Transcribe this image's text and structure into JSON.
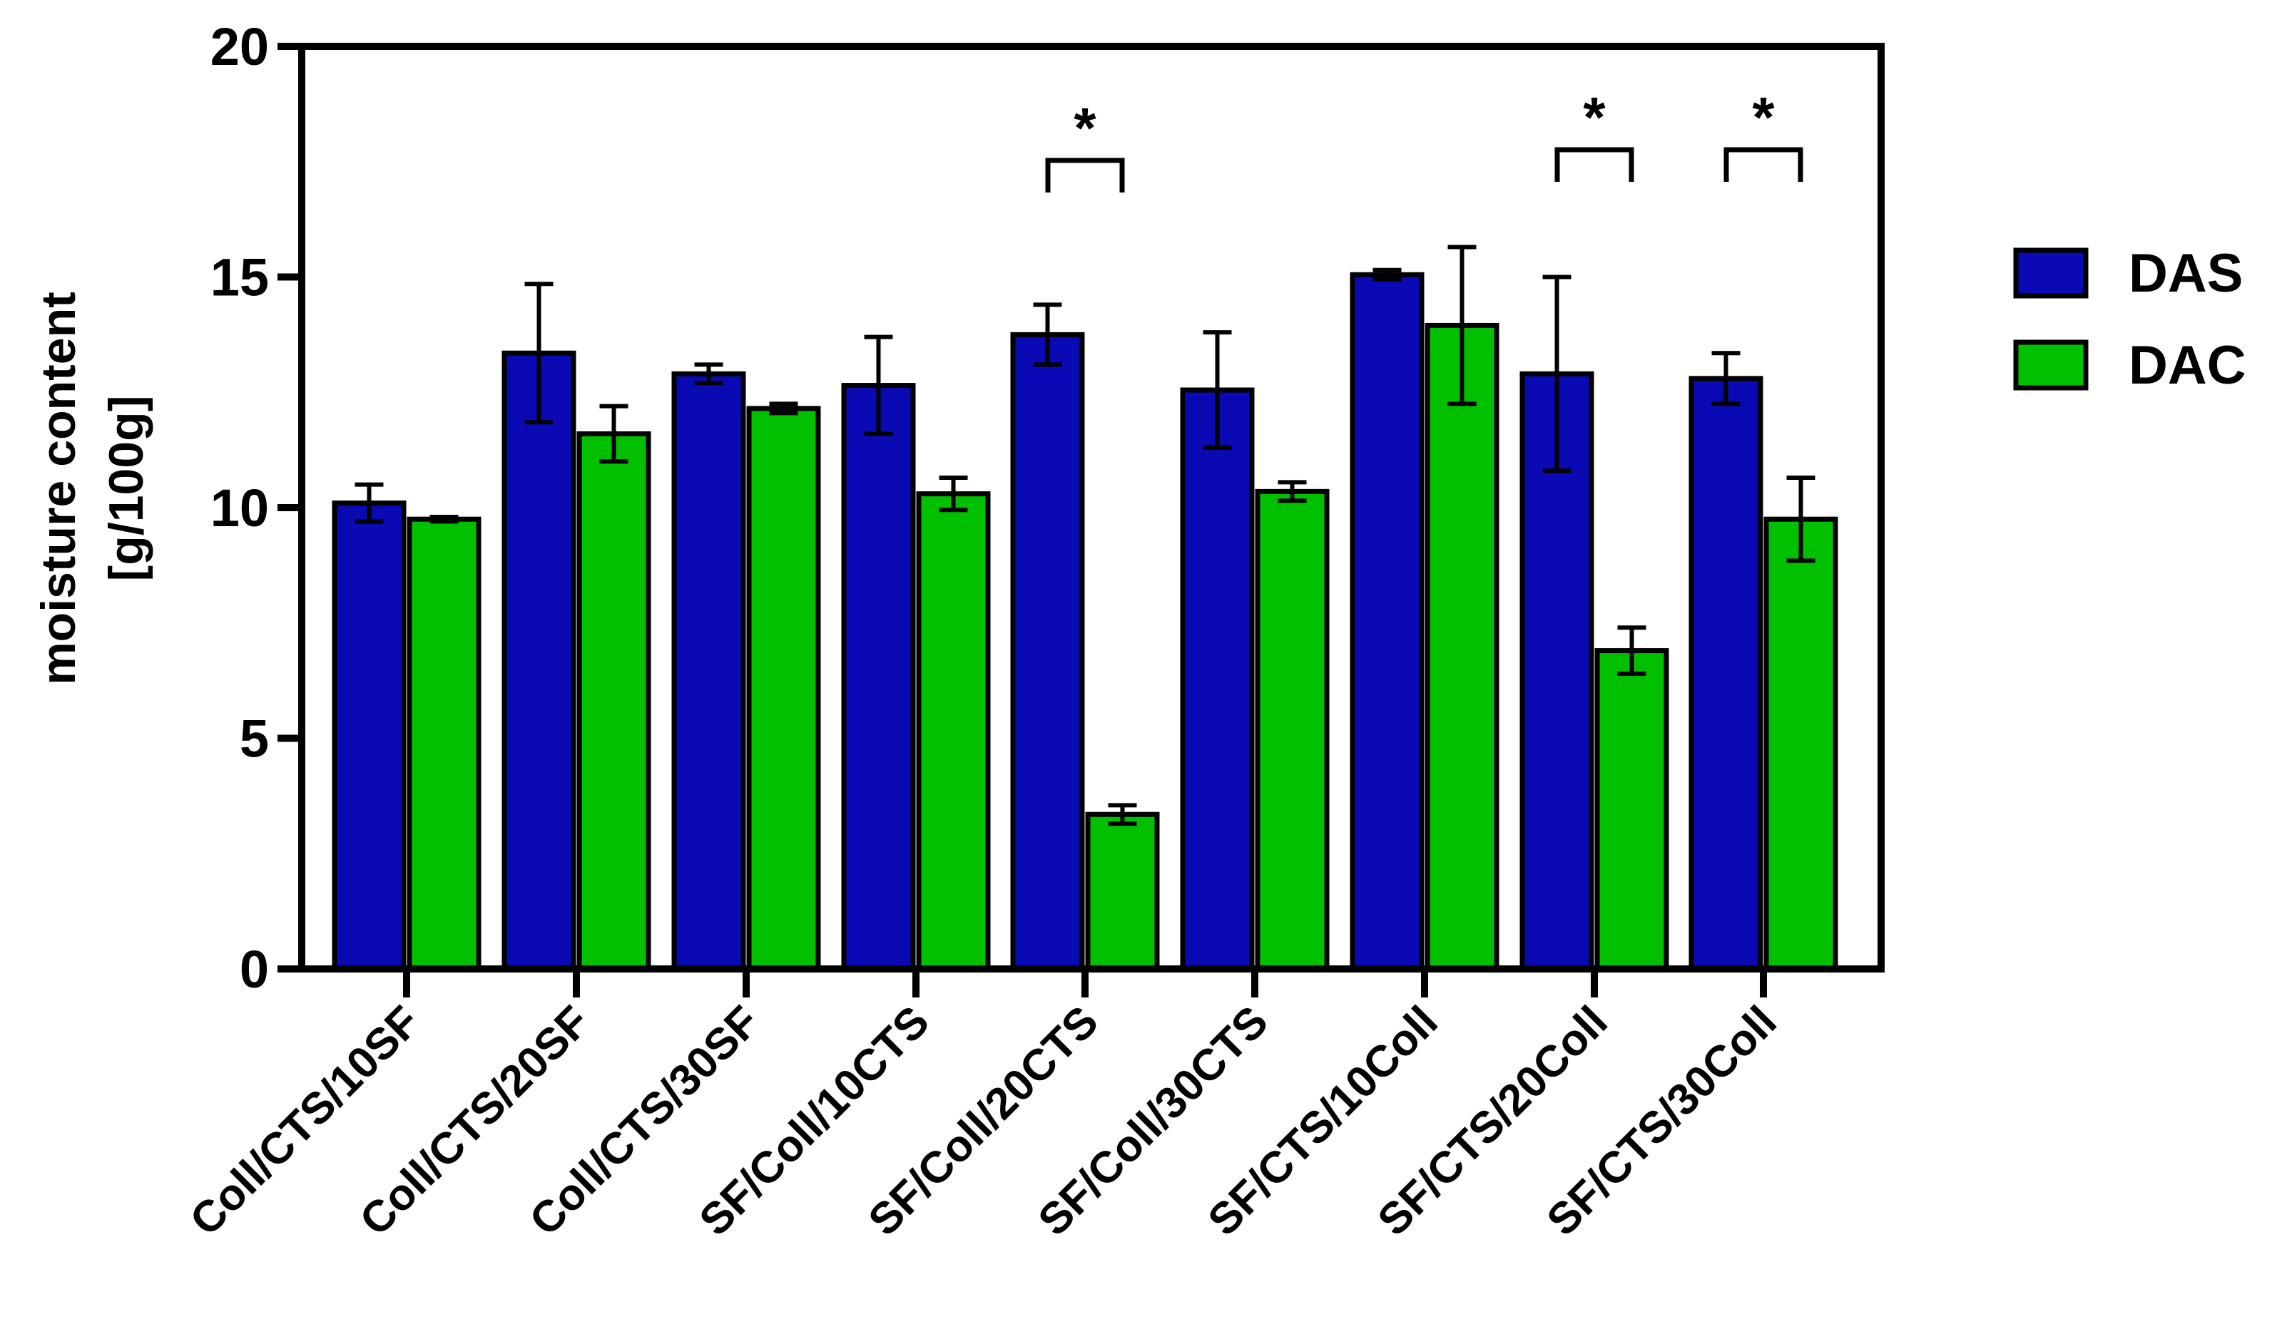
{
  "chart_data": {
    "type": "bar",
    "title": "",
    "xlabel": "",
    "ylabel": [
      "moisture content",
      "[g/100g]"
    ],
    "ylim": [
      0,
      20
    ],
    "yticks": [
      0,
      5,
      10,
      15,
      20
    ],
    "categories": [
      "Coll/CTS/10SF",
      "Coll/CTS/20SF",
      "Coll/CTS/30SF",
      "SF/Coll/10CTS",
      "SF/Coll/20CTS",
      "SF/Coll/30CTS",
      "SF/CTS/10Coll",
      "SF/CTS/20Coll",
      "SF/CTS/30Coll"
    ],
    "series": [
      {
        "name": "DAS",
        "color": "#0a0ab4",
        "values": [
          10.1,
          13.35,
          12.9,
          12.65,
          13.75,
          12.55,
          15.05,
          12.9,
          12.8
        ],
        "errors": [
          0.4,
          1.5,
          0.2,
          1.05,
          0.65,
          1.25,
          0.1,
          2.1,
          0.55
        ]
      },
      {
        "name": "DAC",
        "color": "#00c000",
        "values": [
          9.75,
          11.6,
          12.15,
          10.3,
          3.35,
          10.35,
          13.95,
          6.9,
          9.75
        ],
        "errors": [
          0.05,
          0.6,
          0.1,
          0.35,
          0.2,
          0.2,
          1.7,
          0.5,
          0.9
        ]
      }
    ],
    "significance": [
      {
        "category_index": 4,
        "label": "*"
      },
      {
        "category_index": 7,
        "label": "*"
      },
      {
        "category_index": 8,
        "label": "*"
      }
    ],
    "legend": {
      "position": "right",
      "entries": [
        "DAS",
        "DAC"
      ]
    },
    "grid": false
  }
}
